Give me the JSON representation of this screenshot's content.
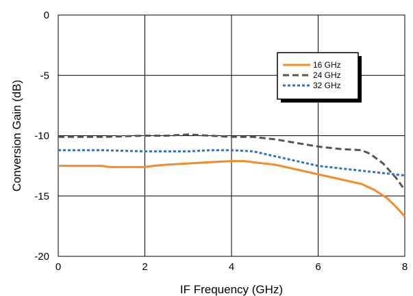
{
  "chart_data": {
    "type": "line",
    "xlabel": "IF Frequency (GHz)",
    "ylabel": "Conversion Gain (dB)",
    "xlim": [
      0,
      8
    ],
    "ylim": [
      -20,
      0
    ],
    "xticks": [
      0,
      2,
      4,
      6,
      8
    ],
    "yticks": [
      0,
      -5,
      -10,
      -15,
      -20
    ],
    "xtick_labels": [
      "0",
      "2",
      "4",
      "6",
      "8"
    ],
    "ytick_labels": [
      "0",
      "-5",
      "-10",
      "-15",
      "-20"
    ],
    "grid": true,
    "legend_position": "top-right",
    "series": [
      {
        "name": "16 GHz",
        "color": "#F28C28",
        "style": "solid",
        "x": [
          0,
          0.5,
          1.0,
          1.2,
          2.0,
          2.2,
          2.5,
          3.0,
          3.5,
          4.0,
          4.3,
          4.5,
          5.0,
          5.5,
          6.0,
          6.5,
          7.0,
          7.3,
          7.6,
          7.8,
          8.0
        ],
        "y": [
          -12.5,
          -12.5,
          -12.5,
          -12.6,
          -12.6,
          -12.5,
          -12.4,
          -12.3,
          -12.2,
          -12.1,
          -12.1,
          -12.2,
          -12.4,
          -12.8,
          -13.2,
          -13.6,
          -14.0,
          -14.5,
          -15.2,
          -15.9,
          -16.7
        ]
      },
      {
        "name": "24 GHz",
        "color": "#555555",
        "style": "dashed",
        "x": [
          0,
          1.0,
          2.0,
          2.5,
          3.0,
          3.5,
          4.0,
          4.5,
          5.0,
          5.5,
          6.0,
          6.5,
          7.0,
          7.2,
          7.5,
          7.8,
          8.0
        ],
        "y": [
          -10.1,
          -10.1,
          -10.0,
          -10.0,
          -9.9,
          -10.0,
          -10.1,
          -10.1,
          -10.3,
          -10.6,
          -10.9,
          -11.1,
          -11.2,
          -11.5,
          -12.3,
          -13.5,
          -14.5
        ]
      },
      {
        "name": "32 GHz",
        "color": "#2B6FD6",
        "style": "dotted",
        "x": [
          0,
          1.0,
          2.0,
          3.0,
          3.5,
          4.0,
          4.5,
          5.0,
          5.5,
          6.0,
          6.5,
          7.0,
          7.5,
          8.0
        ],
        "y": [
          -11.2,
          -11.2,
          -11.3,
          -11.3,
          -11.2,
          -11.2,
          -11.3,
          -11.7,
          -12.1,
          -12.5,
          -12.7,
          -12.9,
          -13.1,
          -13.3
        ]
      }
    ]
  }
}
